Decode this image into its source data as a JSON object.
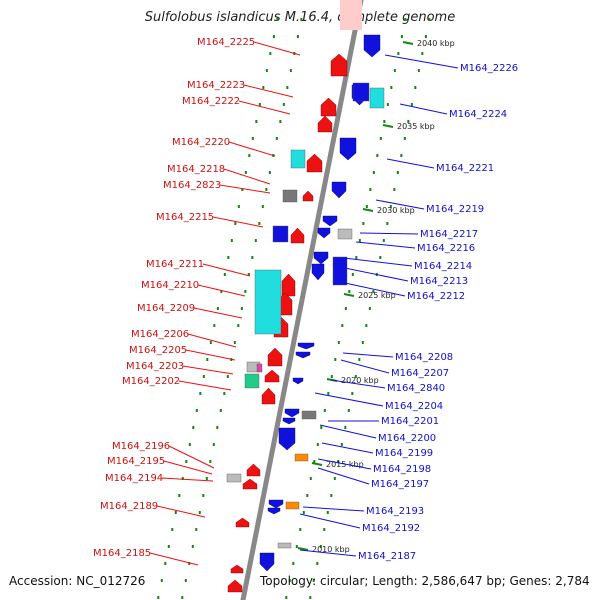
{
  "title": "Sulfolobus islandicus M.16.4, complete genome",
  "footer": {
    "accession": "Accession: NC_012726",
    "summary": "Topology: circular; Length: 2,586,647 bp; Genes: 2,784"
  },
  "colors": {
    "forward": "#ee1111",
    "reverse": "#1111dd",
    "cyan": "#22dddd",
    "grey": "#777777",
    "lightgrey": "#bbbbbb",
    "orange": "#ff8800",
    "magenta": "#dd44aa",
    "green": "#22cc88",
    "backbone": "#888888",
    "tick": "#118811"
  },
  "kbp_marks": [
    "2040 kbp",
    "2035 kbp",
    "2030 kbp",
    "2025 kbp",
    "2020 kbp",
    "2015 kbp",
    "2010 kbp"
  ],
  "left_labels": [
    "M164_2225",
    "M164_2223",
    "M164_2222",
    "M164_2220",
    "M164_2218",
    "M164_2823",
    "M164_2215",
    "M164_2211",
    "M164_2210",
    "M164_2209",
    "M164_2206",
    "M164_2205",
    "M164_2203",
    "M164_2202",
    "M164_2196",
    "M164_2195",
    "M164_2194",
    "M164_2189",
    "M164_2185"
  ],
  "right_labels": [
    "M164_2226",
    "M164_2224",
    "M164_2221",
    "M164_2219",
    "M164_2217",
    "M164_2216",
    "M164_2214",
    "M164_2213",
    "M164_2212",
    "M164_2208",
    "M164_2207",
    "M164_2840",
    "M164_2204",
    "M164_2201",
    "M164_2200",
    "M164_2199",
    "M164_2198",
    "M164_2197",
    "M164_2193",
    "M164_2192",
    "M164_2187"
  ]
}
